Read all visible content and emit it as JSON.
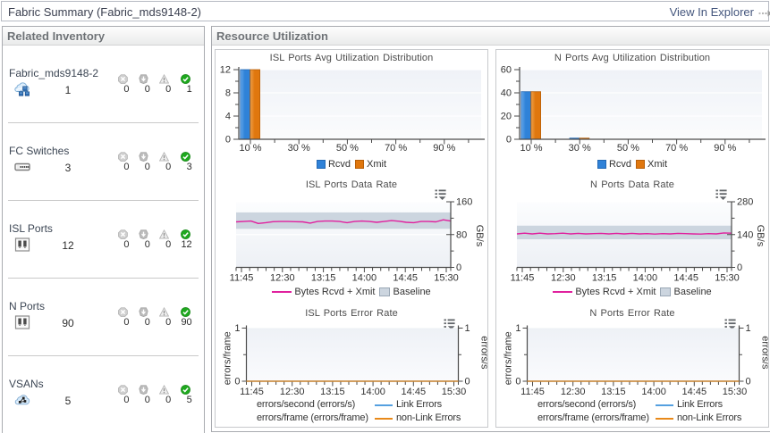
{
  "titlebar": {
    "title": "Fabric Summary (Fabric_mds9148-2)",
    "view_in_explorer": "View In Explorer"
  },
  "inventory": {
    "title": "Related Inventory",
    "status_kinds": [
      "down",
      "blackout",
      "warning",
      "up"
    ],
    "items": [
      {
        "label": "Fabric_mds9148-2",
        "icon": "fabric-icon",
        "count": "1",
        "statuses": [
          "0",
          "0",
          "0",
          "1"
        ]
      },
      {
        "label": "FC Switches",
        "icon": "switch-icon",
        "count": "3",
        "statuses": [
          "0",
          "0",
          "0",
          "3"
        ]
      },
      {
        "label": "ISL Ports",
        "icon": "port-icon",
        "count": "12",
        "statuses": [
          "0",
          "0",
          "0",
          "12"
        ]
      },
      {
        "label": "N Ports",
        "icon": "port-icon",
        "count": "90",
        "statuses": [
          "0",
          "0",
          "0",
          "90"
        ]
      },
      {
        "label": "VSANs",
        "icon": "vsan-icon",
        "count": "5",
        "statuses": [
          "0",
          "0",
          "0",
          "5"
        ]
      }
    ]
  },
  "resource": {
    "title": "Resource Utilization"
  },
  "colors": {
    "rcvd": "#2f82d8",
    "rcvd_light": "#64a7ea",
    "rcvd_border": "#2268b4",
    "xmit": "#e0770e",
    "xmit_light": "#f0a04a",
    "xmit_border": "#b85f08",
    "data_line": "#e0219e",
    "baseline": "#ccd5df",
    "baseline_border": "#9aa7b5",
    "link_errors": "#55a0e0",
    "non_link_errors": "#e8891a",
    "axis": "#4a4a4a",
    "tick_text": "#333333"
  },
  "chart_data": [
    {
      "id": "isl-util",
      "type": "bar",
      "title": "ISL Ports Avg Utilization Distribution",
      "xlim": [
        5.2,
        105.2
      ],
      "x_major_ticks": [
        10,
        30,
        50,
        70,
        90
      ],
      "x_major_labels": [
        "10 %",
        "30 %",
        "50 %",
        "70 %",
        "90 %"
      ],
      "x_minor_ticks": [
        20,
        40,
        60,
        80,
        100
      ],
      "ylim": [
        0,
        12
      ],
      "y_major_ticks": [
        0,
        4,
        8,
        12
      ],
      "y_minor_step": 2,
      "series": [
        {
          "name": "Rcvd",
          "points": [
            {
              "x": 10,
              "y": 12
            }
          ]
        },
        {
          "name": "Xmit",
          "points": [
            {
              "x": 10,
              "y": 12
            }
          ]
        }
      ],
      "legend": [
        "Rcvd",
        "Xmit"
      ]
    },
    {
      "id": "nports-util",
      "type": "bar",
      "title": "N Ports Avg Utilization Distribution",
      "xlim": [
        5.2,
        105.2
      ],
      "x_major_ticks": [
        10,
        30,
        50,
        70,
        90
      ],
      "x_major_labels": [
        "10 %",
        "30 %",
        "50 %",
        "70 %",
        "90 %"
      ],
      "x_minor_ticks": [
        20,
        40,
        60,
        80,
        100
      ],
      "ylim": [
        0,
        60
      ],
      "y_major_ticks": [
        0,
        20,
        40,
        60
      ],
      "y_minor_step": 10,
      "series": [
        {
          "name": "Rcvd",
          "points": [
            {
              "x": 10,
              "y": 41
            },
            {
              "x": 30,
              "y": 1
            }
          ]
        },
        {
          "name": "Xmit",
          "points": [
            {
              "x": 10,
              "y": 41
            },
            {
              "x": 30,
              "y": 1
            }
          ]
        }
      ],
      "legend": [
        "Rcvd",
        "Xmit"
      ]
    },
    {
      "id": "isl-rate",
      "type": "rate",
      "title": "ISL Ports Data Rate",
      "ylabel": "GB/s",
      "ylim": [
        0,
        160
      ],
      "y_major_ticks": [
        0,
        80,
        160
      ],
      "y_minor_step": 40,
      "x_labels": [
        "11:45",
        "12:30",
        "13:15",
        "14:00",
        "14:45",
        "15:30"
      ],
      "baseline_band": [
        94,
        134
      ],
      "series": [
        {
          "name": "Bytes Rcvd + Xmit",
          "values": [
            111,
            112,
            113,
            107,
            109,
            111.5,
            112,
            112,
            111.5,
            111,
            108,
            112,
            113,
            113,
            112,
            109,
            112,
            113,
            112,
            110,
            112,
            114,
            112.5,
            110,
            109,
            112,
            112,
            111,
            116,
            113
          ]
        }
      ],
      "legend": [
        {
          "type": "line",
          "label": "Bytes Rcvd + Xmit"
        },
        {
          "type": "box",
          "label": "Baseline"
        }
      ]
    },
    {
      "id": "nports-rate",
      "type": "rate",
      "title": "N Ports Data Rate",
      "ylabel": "GB/s",
      "ylim": [
        0,
        280
      ],
      "y_major_ticks": [
        0,
        140,
        280
      ],
      "y_minor_step": 70,
      "x_labels": [
        "11:45",
        "12:30",
        "13:15",
        "14:00",
        "14:45",
        "15:30"
      ],
      "baseline_band": [
        120,
        178
      ],
      "series": [
        {
          "name": "Bytes Rcvd + Xmit",
          "values": [
            143,
            146,
            143,
            146,
            143,
            144,
            146,
            143,
            145,
            143,
            144,
            145,
            143,
            145,
            143,
            145,
            143,
            144,
            142,
            144,
            143,
            145,
            144,
            143,
            142,
            144,
            143,
            147,
            146
          ]
        }
      ],
      "legend": [
        {
          "type": "line",
          "label": "Bytes Rcvd + Xmit"
        },
        {
          "type": "box",
          "label": "Baseline"
        }
      ]
    },
    {
      "id": "isl-err",
      "type": "error",
      "title": "ISL Ports Error Rate",
      "ylabel_left": "errors/frame",
      "ylabel_right": "errors/s",
      "ylim": [
        0,
        1
      ],
      "y_major_ticks": [
        0,
        1
      ],
      "y_minor_step": 0.5,
      "x_labels": [
        "11:45",
        "12:30",
        "13:15",
        "14:00",
        "14:45",
        "15:30"
      ],
      "series": [
        {
          "name": "Link Errors",
          "values": [
            0,
            0
          ]
        },
        {
          "name": "non-Link Errors",
          "values": [
            0,
            0
          ]
        }
      ],
      "legend_rows": [
        {
          "label": "errors/second (errors/s)",
          "series": "Link Errors"
        },
        {
          "label": "errors/frame (errors/frame)",
          "series": "non-Link Errors"
        }
      ]
    },
    {
      "id": "nports-err",
      "type": "error",
      "title": "N Ports Error Rate",
      "ylabel_left": "errors/frame",
      "ylabel_right": "errors/s",
      "ylim": [
        0,
        1
      ],
      "y_major_ticks": [
        0,
        1
      ],
      "y_minor_step": 0.5,
      "x_labels": [
        "11:45",
        "12:30",
        "13:15",
        "14:00",
        "14:45",
        "15:30"
      ],
      "series": [
        {
          "name": "Link Errors",
          "values": [
            0,
            0
          ]
        },
        {
          "name": "non-Link Errors",
          "values": [
            0,
            0
          ]
        }
      ],
      "legend_rows": [
        {
          "label": "errors/second (errors/s)",
          "series": "Link Errors"
        },
        {
          "label": "errors/frame (errors/frame)",
          "series": "non-Link Errors"
        }
      ]
    }
  ]
}
